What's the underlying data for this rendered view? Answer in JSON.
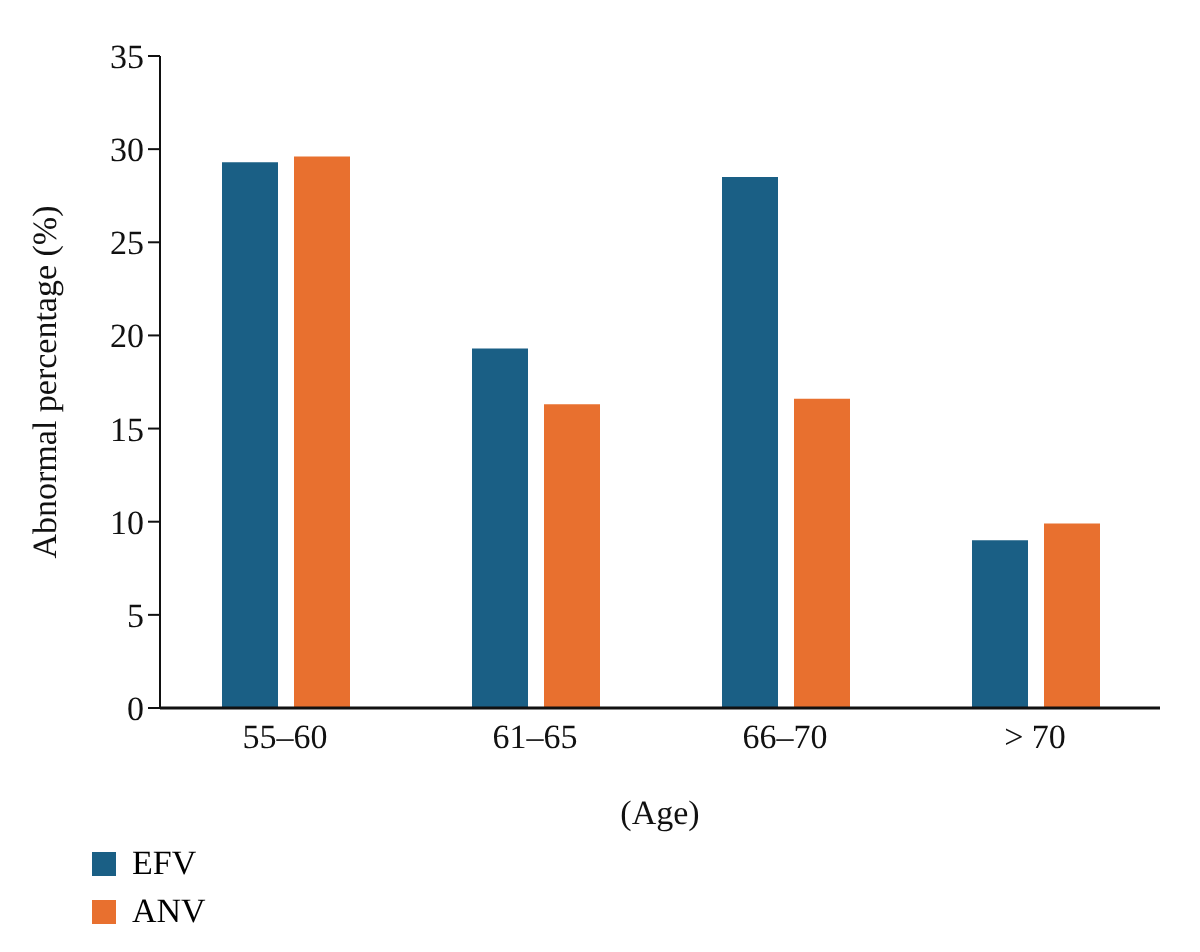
{
  "chart_data": {
    "type": "bar",
    "xlabel": "(Age)",
    "ylabel": "Abnormal percentage (%)",
    "categories": [
      "55–60",
      "61–65",
      "66–70",
      "> 70"
    ],
    "series": [
      {
        "name": "EFV",
        "color": "#1a5f85",
        "values": [
          29.3,
          19.3,
          28.5,
          9.0
        ]
      },
      {
        "name": "ANV",
        "color": "#e8702f",
        "values": [
          29.6,
          16.3,
          16.6,
          9.9
        ]
      }
    ],
    "ylim": [
      0,
      35
    ],
    "yticks": [
      0,
      5,
      10,
      15,
      20,
      25,
      30,
      35
    ],
    "grid": false,
    "legend": "bottom left"
  }
}
